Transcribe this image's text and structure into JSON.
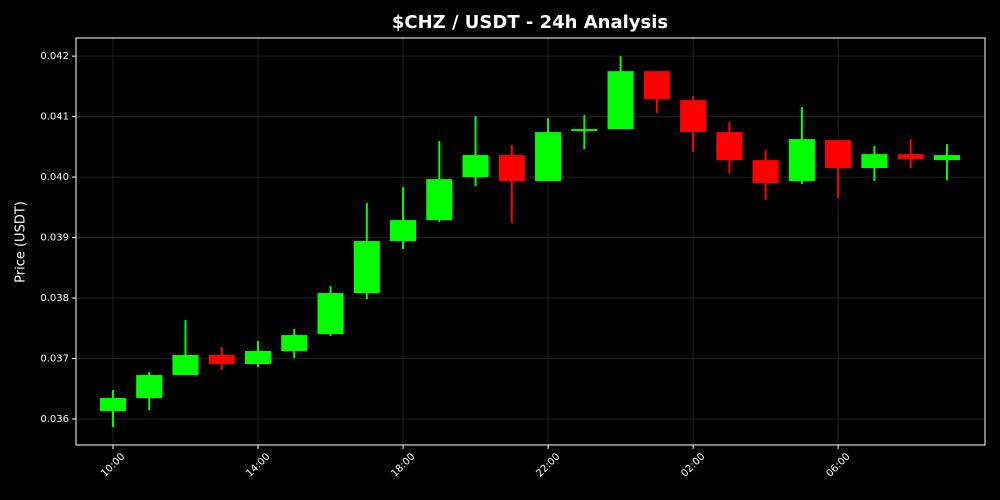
{
  "chart_data": {
    "type": "candlestick",
    "title": "$CHZ / USDT - 24h Analysis",
    "y_label": "Price (USDT)",
    "categories": [
      "10:00",
      null,
      null,
      null,
      "14:00",
      null,
      null,
      null,
      "18:00",
      null,
      null,
      null,
      "22:00",
      null,
      null,
      null,
      "02:00",
      null,
      null,
      null,
      "06:00",
      null,
      null,
      null
    ],
    "open": [
      0.036132,
      0.036347,
      0.036727,
      0.037058,
      0.036909,
      0.037124,
      0.037405,
      0.038082,
      0.038942,
      0.039289,
      0.04,
      0.040364,
      0.039934,
      0.04076,
      0.040794,
      0.041752,
      0.041273,
      0.040744,
      0.040281,
      0.039934,
      0.040612,
      0.040149,
      0.04038,
      0.040281
    ],
    "high": [
      0.036479,
      0.036777,
      0.037636,
      0.03719,
      0.037289,
      0.037487,
      0.038198,
      0.03957,
      0.039835,
      0.040595,
      0.041008,
      0.040529,
      0.040975,
      0.041025,
      0.042,
      0.041752,
      0.041339,
      0.040909,
      0.040446,
      0.041157,
      0.040612,
      0.040512,
      0.040628,
      0.040545
    ],
    "low": [
      0.035868,
      0.036149,
      0.036727,
      0.03681,
      0.036859,
      0.037008,
      0.037372,
      0.037983,
      0.03881,
      0.039256,
      0.039851,
      0.03924,
      0.039934,
      0.040463,
      0.040794,
      0.041058,
      0.040413,
      0.040066,
      0.03962,
      0.039884,
      0.039653,
      0.039934,
      0.040149,
      0.03995
    ],
    "close": [
      0.036347,
      0.036727,
      0.037058,
      0.036909,
      0.037124,
      0.037388,
      0.038082,
      0.038942,
      0.039289,
      0.039967,
      0.040364,
      0.039934,
      0.040744,
      0.040794,
      0.041752,
      0.041289,
      0.040744,
      0.040281,
      0.039901,
      0.040628,
      0.040149,
      0.04038,
      0.040297,
      0.040364
    ],
    "up_color": "#00ff00",
    "down_color": "#ff0000",
    "ylim": [
      0.03557,
      0.0423
    ],
    "yticks": [
      0.036,
      0.037,
      0.038,
      0.039,
      {
        "value": 0.04,
        "label": "0.040"
      },
      0.041,
      0.042
    ],
    "grid": true
  }
}
